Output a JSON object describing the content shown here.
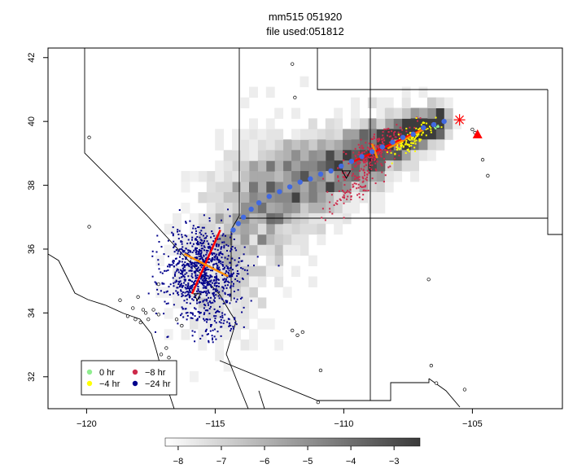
{
  "chart_data": {
    "type": "scatter",
    "title": "mm515 051920",
    "subtitle": "file used:051812",
    "xlabel": "",
    "ylabel": "",
    "xlim": [
      -121.5,
      -101.5
    ],
    "ylim": [
      31,
      42.3
    ],
    "x_ticks": [
      -120,
      -115,
      -110,
      -105
    ],
    "y_ticks": [
      32,
      34,
      36,
      38,
      40,
      42
    ],
    "x_tick_labels": [
      "−120",
      "−115",
      "−110",
      "−105"
    ],
    "y_tick_labels": [
      "32",
      "34",
      "36",
      "38",
      "40",
      "42"
    ],
    "grid": false,
    "legend_position": "bottom-left",
    "legend": [
      {
        "label": "0 hr",
        "color": "#90ee90"
      },
      {
        "label": "−8 hr",
        "color": "#cd2a4a"
      },
      {
        "label": "−4 hr",
        "color": "#ffff00"
      },
      {
        "label": "−24 hr",
        "color": "#00008b"
      }
    ],
    "colorbar": {
      "range": [
        -8.3,
        -2.4
      ],
      "ticks": [
        -8,
        -7,
        -6,
        -5,
        -4,
        -3
      ],
      "tick_labels": [
        "−8",
        "−7",
        "−6",
        "−5",
        "−4",
        "−3"
      ],
      "low_color": "#ffffff",
      "high_color": "#3a3a3a"
    },
    "source": {
      "lon": -105.5,
      "lat": 40.05,
      "color": "#ff0000"
    },
    "site": {
      "lon": -104.8,
      "lat": 39.6,
      "color": "#ff0000"
    },
    "trajectory_centers": [
      [
        -106.1,
        40.0
      ],
      [
        -106.5,
        39.9
      ],
      [
        -106.9,
        39.8
      ],
      [
        -107.3,
        39.6
      ],
      [
        -107.7,
        39.5
      ],
      [
        -108.1,
        39.35
      ],
      [
        -108.5,
        39.2
      ],
      [
        -108.9,
        39.05
      ],
      [
        -109.3,
        38.9
      ],
      [
        -109.7,
        38.75
      ],
      [
        -110.1,
        38.6
      ],
      [
        -110.5,
        38.45
      ],
      [
        -110.9,
        38.35
      ],
      [
        -111.3,
        38.2
      ],
      [
        -111.7,
        38.1
      ],
      [
        -112.1,
        37.95
      ],
      [
        -112.5,
        37.8
      ],
      [
        -112.9,
        37.65
      ],
      [
        -113.3,
        37.45
      ],
      [
        -113.6,
        37.25
      ],
      [
        -113.9,
        37.0
      ],
      [
        -114.1,
        36.8
      ],
      [
        -114.3,
        36.6
      ]
    ],
    "cluster_axes": [
      {
        "color": "#ff0000",
        "from": [
          -115.9,
          34.6
        ],
        "to": [
          -114.8,
          36.6
        ]
      },
      {
        "color": "#ff8c00",
        "from": [
          -116.2,
          35.85
        ],
        "to": [
          -114.5,
          35.15
        ]
      },
      {
        "color": "#ff0000",
        "from": [
          -109.6,
          38.75
        ],
        "to": [
          -106.8,
          39.8
        ]
      },
      {
        "color": "#ff8c00",
        "from": [
          -108.9,
          39.3
        ],
        "to": [
          -108.7,
          38.85
        ]
      },
      {
        "color": "#ff8c00",
        "from": [
          -108.3,
          39.15
        ],
        "to": [
          -106.9,
          39.75
        ]
      }
    ],
    "clusters": [
      {
        "name": "24hr",
        "color": "#00008b",
        "cx": -115.5,
        "cy": 35.3,
        "sx": 0.75,
        "sy": 0.7,
        "n": 900
      },
      {
        "name": "24hr-tail",
        "color": "#00008b",
        "cx": -115.0,
        "cy": 33.6,
        "sx": 0.4,
        "sy": 0.3,
        "n": 60
      },
      {
        "name": "8hr",
        "color": "#cd2a4a",
        "cx": -108.8,
        "cy": 39.0,
        "sx": 0.65,
        "sy": 0.28,
        "n": 260
      },
      {
        "name": "8hr-tail",
        "color": "#cd2a4a",
        "cx": -109.7,
        "cy": 37.8,
        "sx": 0.5,
        "sy": 0.18,
        "n": 70
      },
      {
        "name": "4hr",
        "color": "#ffff00",
        "cx": -107.4,
        "cy": 39.45,
        "sx": 0.45,
        "sy": 0.2,
        "n": 110
      },
      {
        "name": "0hr",
        "color": "#90ee90",
        "cx": -106.4,
        "cy": 39.85,
        "sx": 0.2,
        "sy": 0.08,
        "n": 8
      }
    ],
    "stations": [
      [
        -119.9,
        39.5
      ],
      [
        -119.9,
        36.7
      ],
      [
        -118.7,
        34.4
      ],
      [
        -117.2,
        34.9
      ],
      [
        -118.2,
        34.15
      ],
      [
        -118.4,
        33.9
      ],
      [
        -118.1,
        33.8
      ],
      [
        -117.9,
        33.7
      ],
      [
        -117.7,
        34.0
      ],
      [
        -117.4,
        34.1
      ],
      [
        -117.6,
        33.8
      ],
      [
        -117.8,
        34.1
      ],
      [
        -117.2,
        33.95
      ],
      [
        -116.5,
        33.8
      ],
      [
        -116.3,
        33.6
      ],
      [
        -117.1,
        32.7
      ],
      [
        -116.8,
        32.6
      ],
      [
        -116.9,
        32.9
      ],
      [
        -118.0,
        34.5
      ],
      [
        -112.0,
        41.8
      ],
      [
        -111.9,
        40.75
      ],
      [
        -112.0,
        33.45
      ],
      [
        -111.8,
        33.3
      ],
      [
        -111.6,
        33.4
      ],
      [
        -110.9,
        32.2
      ],
      [
        -111.0,
        31.2
      ],
      [
        -106.7,
        35.05
      ],
      [
        -106.6,
        32.35
      ],
      [
        -106.4,
        31.8
      ],
      [
        -104.6,
        38.8
      ],
      [
        -104.4,
        38.3
      ],
      [
        -105.3,
        31.6
      ],
      [
        -105.0,
        39.75
      ],
      [
        -104.9,
        39.65
      ]
    ]
  }
}
